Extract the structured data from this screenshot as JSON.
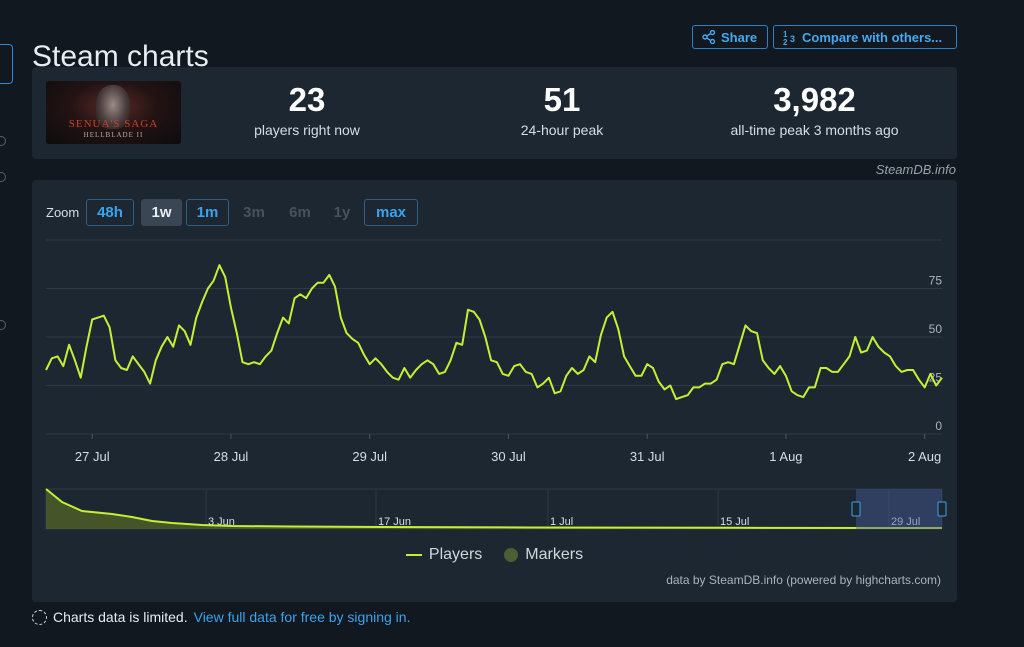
{
  "header": {
    "title": "Steam charts",
    "share_label": "Share",
    "compare_label": "Compare with others..."
  },
  "game": {
    "cover_title": "SENUA'S SAGA",
    "cover_subtitle": "HELLBLADE II"
  },
  "stats": [
    {
      "value": "23",
      "label": "players right now"
    },
    {
      "value": "51",
      "label": "24-hour peak"
    },
    {
      "value": "3,982",
      "label": "all-time peak 3 months ago"
    }
  ],
  "credit": "SteamDB.info",
  "zoom": {
    "label": "Zoom",
    "options": [
      {
        "label": "48h",
        "state": "on"
      },
      {
        "label": "1w",
        "state": "selected"
      },
      {
        "label": "1m",
        "state": "on"
      },
      {
        "label": "3m",
        "state": "off"
      },
      {
        "label": "6m",
        "state": "off"
      },
      {
        "label": "1y",
        "state": "off"
      },
      {
        "label": "max",
        "state": "on"
      }
    ]
  },
  "legend": {
    "players": "Players",
    "markers": "Markers"
  },
  "powered": "data by SteamDB.info (powered by highcharts.com)",
  "footer": {
    "text": "Charts data is limited.",
    "link": "View full data for free by signing in."
  },
  "colors": {
    "series": "#c2f134",
    "accent": "#3aa3ee",
    "panel": "#1d2731",
    "background": "#111820"
  },
  "chart_data": {
    "type": "line",
    "series": [
      {
        "name": "Players"
      }
    ],
    "y_ticks": [
      0,
      25,
      50,
      75
    ],
    "ylim": [
      0,
      100
    ],
    "x_labels": [
      "27 Jul",
      "28 Jul",
      "29 Jul",
      "30 Jul",
      "31 Jul",
      "1 Aug",
      "2 Aug"
    ],
    "x_label_index": [
      8,
      32,
      56,
      80,
      104,
      128,
      152
    ],
    "values": [
      33,
      39,
      40,
      35,
      46,
      38,
      29,
      45,
      59,
      60,
      61,
      55,
      38,
      34,
      33,
      40,
      36,
      32,
      26,
      38,
      45,
      50,
      45,
      56,
      53,
      46,
      60,
      68,
      75,
      79,
      87,
      81,
      65,
      52,
      37,
      36,
      37,
      36,
      40,
      43,
      52,
      60,
      57,
      70,
      72,
      70,
      75,
      78,
      78,
      82,
      76,
      60,
      52,
      49,
      47,
      41,
      36,
      39,
      36,
      32,
      29,
      28,
      34,
      29,
      33,
      36,
      38,
      36,
      31,
      32,
      38,
      47,
      46,
      64,
      63,
      59,
      50,
      38,
      37,
      31,
      30,
      35,
      36,
      32,
      31,
      24,
      26,
      29,
      21,
      22,
      30,
      34,
      31,
      33,
      40,
      37,
      51,
      60,
      63,
      54,
      40,
      35,
      30,
      30,
      36,
      34,
      27,
      23,
      25,
      18,
      19,
      20,
      24,
      24,
      26,
      26,
      28,
      36,
      37,
      36,
      46,
      56,
      53,
      52,
      38,
      34,
      31,
      35,
      30,
      22,
      20,
      19,
      24,
      24,
      34,
      34,
      32,
      32,
      36,
      40,
      50,
      42,
      43,
      50,
      45,
      42,
      40,
      35,
      32,
      33,
      33,
      28,
      24,
      31,
      25,
      29
    ],
    "navigator": {
      "x_labels": [
        "3 Jun",
        "17 Jun",
        "1 Jul",
        "15 Jul",
        "29 Jul"
      ]
    }
  }
}
